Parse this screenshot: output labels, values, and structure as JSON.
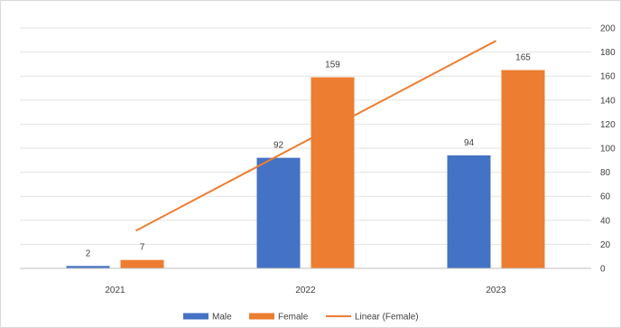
{
  "chart_data": {
    "type": "bar",
    "categories": [
      "2021",
      "2022",
      "2023"
    ],
    "series": [
      {
        "name": "Male",
        "values": [
          2,
          92,
          94
        ],
        "color": "#4472c4",
        "data_labels": [
          "2",
          "92",
          "94"
        ]
      },
      {
        "name": "Female",
        "values": [
          7,
          159,
          165
        ],
        "color": "#ed7d31",
        "data_labels": [
          "7",
          "159",
          "165"
        ]
      }
    ],
    "trendline": {
      "name": "Linear (Female)",
      "of_series": "Female",
      "kind": "linear",
      "color": "#ed7d31"
    },
    "y_axis": {
      "side": "right",
      "ylim": [
        0,
        200
      ],
      "ticks": [
        "0",
        "20",
        "40",
        "60",
        "80",
        "100",
        "120",
        "140",
        "160",
        "180",
        "200"
      ]
    },
    "grid": true,
    "legend_position": "bottom"
  }
}
